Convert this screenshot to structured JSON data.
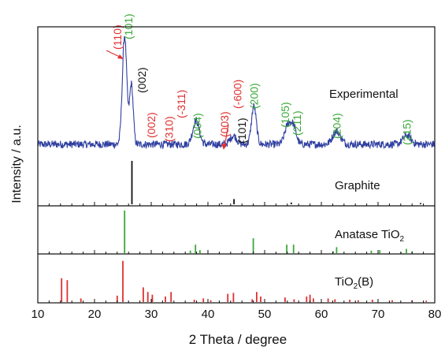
{
  "chart_data": {
    "type": "line",
    "xlabel": "2 Theta / degree",
    "ylabel": "Intensity / a.u.",
    "xlim": [
      10,
      80
    ],
    "x_ticks": [
      10,
      20,
      30,
      40,
      50,
      60,
      70,
      80
    ],
    "grid": false,
    "panels": [
      {
        "name": "Experimental",
        "label": "Experimental",
        "type": "line",
        "color": "#2f3fa0",
        "baseline": 0.18,
        "peaks": [
          {
            "x": 25.3,
            "height": 1.0,
            "width": 0.55
          },
          {
            "x": 26.5,
            "height": 0.55,
            "width": 0.45
          },
          {
            "x": 37.9,
            "height": 0.22,
            "width": 0.8
          },
          {
            "x": 44.5,
            "height": 0.08,
            "width": 0.8
          },
          {
            "x": 48.1,
            "height": 0.35,
            "width": 0.6
          },
          {
            "x": 54.1,
            "height": 0.17,
            "width": 0.8
          },
          {
            "x": 55.1,
            "height": 0.15,
            "width": 0.7
          },
          {
            "x": 62.7,
            "height": 0.12,
            "width": 1.0
          },
          {
            "x": 75.1,
            "height": 0.08,
            "width": 1.0
          }
        ],
        "annotations": [
          {
            "text": "(110)",
            "x": 24.0,
            "color": "#e03030"
          },
          {
            "text": "(101)",
            "x": 26.0,
            "color": "#3aa83a"
          },
          {
            "text": "(002)",
            "x": 28.3,
            "color": "#111111"
          },
          {
            "text": "(002)",
            "x": 30.0,
            "color": "#e03030"
          },
          {
            "text": "(310)",
            "x": 33.1,
            "color": "#e03030"
          },
          {
            "text": "(-311)",
            "x": 35.3,
            "color": "#e03030"
          },
          {
            "text": "(004)",
            "x": 38.1,
            "color": "#3aa83a"
          },
          {
            "text": "(003)",
            "x": 42.9,
            "color": "#e03030"
          },
          {
            "text": "(-600)",
            "x": 45.2,
            "color": "#e03030"
          },
          {
            "text": "(101)",
            "x": 46.0,
            "color": "#111111"
          },
          {
            "text": "(200)",
            "x": 48.1,
            "color": "#3aa83a"
          },
          {
            "text": "(105)",
            "x": 53.6,
            "color": "#3aa83a"
          },
          {
            "text": "(211)",
            "x": 55.7,
            "color": "#3aa83a"
          },
          {
            "text": "(204)",
            "x": 62.7,
            "color": "#3aa83a"
          },
          {
            "text": "(215)",
            "x": 75.1,
            "color": "#3aa83a"
          }
        ]
      },
      {
        "name": "Graphite",
        "label": "Graphite",
        "type": "stick",
        "color": "#111111",
        "x": [
          26.6,
          44.6,
          42.4,
          54.7,
          77.5
        ],
        "values": [
          1.0,
          0.12,
          0.03,
          0.04,
          0.03
        ]
      },
      {
        "name": "Anatase TiO2",
        "label": "Anatase TiO",
        "subscript": "2",
        "type": "stick",
        "color": "#3aa83a",
        "x": [
          25.3,
          36.9,
          37.8,
          38.6,
          48.0,
          53.9,
          55.1,
          62.1,
          62.7,
          68.8,
          70.3,
          74.1,
          75.0,
          76.0
        ],
        "values": [
          1.0,
          0.06,
          0.2,
          0.07,
          0.35,
          0.2,
          0.2,
          0.04,
          0.14,
          0.06,
          0.07,
          0.02,
          0.1,
          0.04
        ]
      },
      {
        "name": "TiO2(B)",
        "label": "TiO",
        "subscript": "2",
        "suffix": "(B)",
        "type": "stick",
        "color": "#e03030",
        "x": [
          14.2,
          15.2,
          17.6,
          24.0,
          25.0,
          28.6,
          29.4,
          30.2,
          32.5,
          33.5,
          37.6,
          39.2,
          40.5,
          43.5,
          44.5,
          47.8,
          48.6,
          49.3,
          53.6,
          55.2,
          57.4,
          58.0,
          58.6,
          61.2,
          62.4,
          65.0,
          66.5,
          69.0,
          72.5,
          76.0,
          78.5
        ],
        "values": [
          0.52,
          0.48,
          0.08,
          0.14,
          0.9,
          0.32,
          0.22,
          0.16,
          0.12,
          0.22,
          0.05,
          0.08,
          0.04,
          0.18,
          0.2,
          0.06,
          0.22,
          0.12,
          0.1,
          0.06,
          0.12,
          0.16,
          0.08,
          0.08,
          0.06,
          0.05,
          0.04,
          0.05,
          0.04,
          0.04,
          0.03
        ]
      }
    ]
  }
}
